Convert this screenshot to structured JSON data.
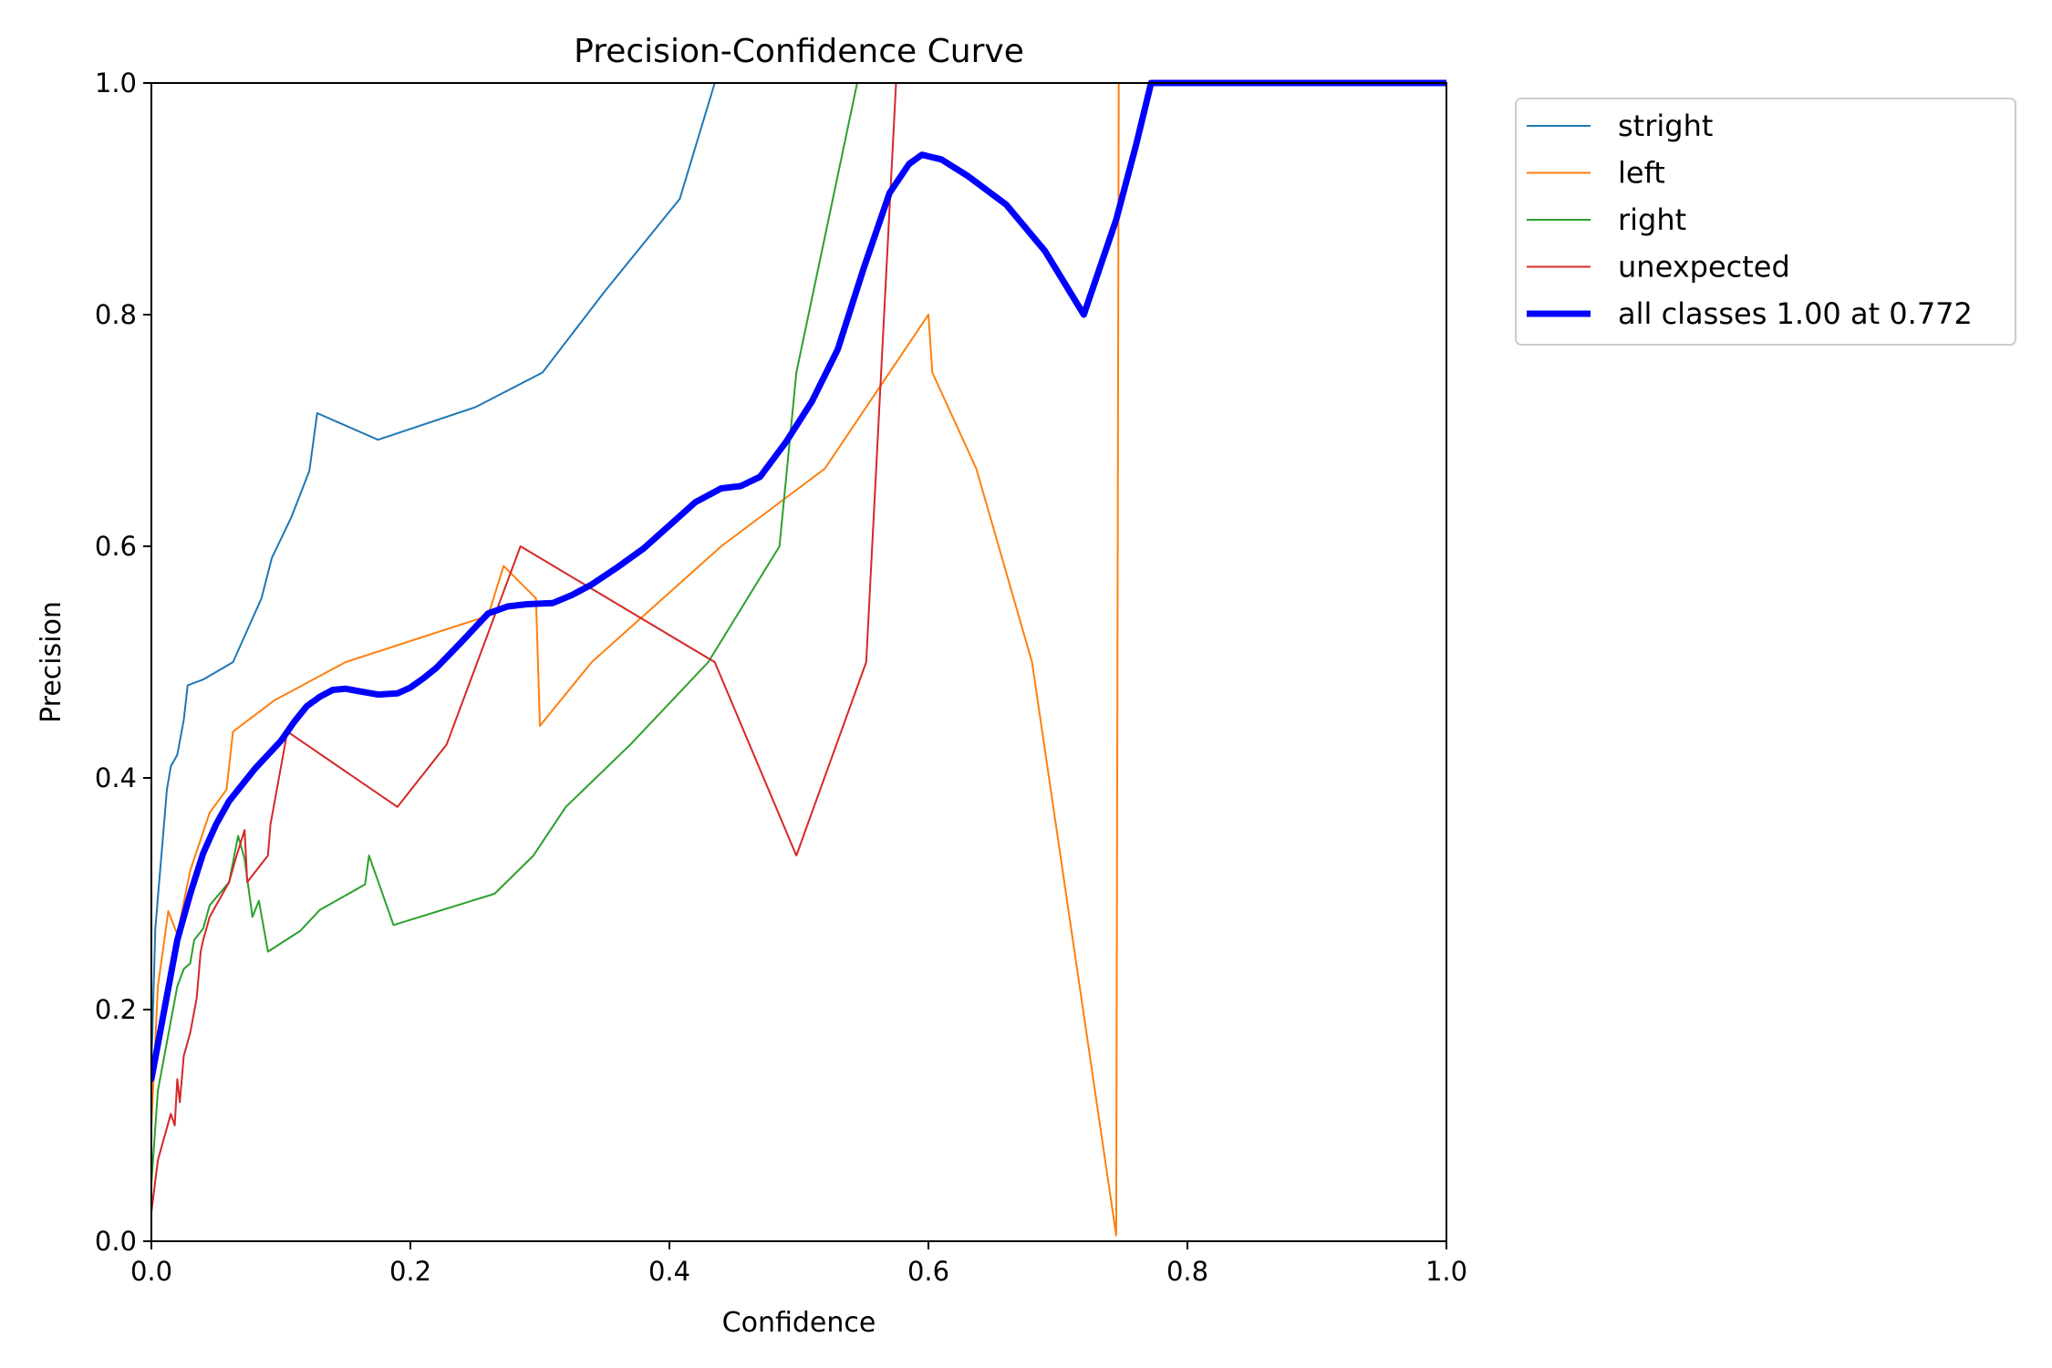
{
  "chart_data": {
    "type": "line",
    "title": "Precision-Confidence Curve",
    "xlabel": "Confidence",
    "ylabel": "Precision",
    "xlim": [
      0,
      1
    ],
    "ylim": [
      0,
      1
    ],
    "xticks": [
      "0.0",
      "0.2",
      "0.4",
      "0.6",
      "0.8",
      "1.0"
    ],
    "yticks": [
      "0.0",
      "0.2",
      "0.4",
      "0.6",
      "0.8",
      "1.0"
    ],
    "grid": false,
    "legend_position": "outside-top-right",
    "series": [
      {
        "name": "stright",
        "color": "#1f77b4",
        "width": "thin",
        "x": [
          0,
          0.003,
          0.006,
          0.009,
          0.012,
          0.015,
          0.02,
          0.025,
          0.028,
          0.04,
          0.063,
          0.075,
          0.085,
          0.093,
          0.108,
          0.122,
          0.128,
          0.175,
          0.25,
          0.302,
          0.35,
          0.408,
          0.435,
          1.0
        ],
        "y": [
          0.15,
          0.27,
          0.31,
          0.35,
          0.39,
          0.41,
          0.42,
          0.45,
          0.48,
          0.485,
          0.5,
          0.53,
          0.555,
          0.59,
          0.625,
          0.665,
          0.715,
          0.692,
          0.72,
          0.75,
          0.82,
          0.9,
          1.0,
          1.0
        ]
      },
      {
        "name": "left",
        "color": "#ff7f0e",
        "width": "thin",
        "x": [
          0,
          0.005,
          0.01,
          0.013,
          0.02,
          0.03,
          0.045,
          0.058,
          0.063,
          0.095,
          0.15,
          0.26,
          0.272,
          0.297,
          0.3,
          0.34,
          0.44,
          0.52,
          0.6,
          0.603,
          0.637,
          0.68,
          0.745,
          0.747,
          1.0
        ],
        "y": [
          0.1,
          0.22,
          0.26,
          0.285,
          0.265,
          0.32,
          0.37,
          0.39,
          0.44,
          0.467,
          0.5,
          0.54,
          0.583,
          0.555,
          0.445,
          0.5,
          0.6,
          0.667,
          0.8,
          0.75,
          0.667,
          0.5,
          0.005,
          1.0,
          1.0
        ]
      },
      {
        "name": "right",
        "color": "#2ca02c",
        "width": "thin",
        "x": [
          0,
          0.005,
          0.01,
          0.015,
          0.02,
          0.025,
          0.03,
          0.033,
          0.04,
          0.045,
          0.06,
          0.067,
          0.072,
          0.078,
          0.083,
          0.09,
          0.115,
          0.13,
          0.165,
          0.168,
          0.187,
          0.265,
          0.295,
          0.32,
          0.37,
          0.43,
          0.485,
          0.498,
          0.545,
          1.0
        ],
        "y": [
          0.05,
          0.13,
          0.16,
          0.19,
          0.22,
          0.235,
          0.24,
          0.26,
          0.27,
          0.29,
          0.31,
          0.35,
          0.33,
          0.28,
          0.294,
          0.25,
          0.268,
          0.286,
          0.308,
          0.333,
          0.273,
          0.3,
          0.333,
          0.375,
          0.429,
          0.5,
          0.6,
          0.75,
          1.0,
          1.0
        ]
      },
      {
        "name": "unexpected",
        "color": "#d62728",
        "width": "thin",
        "x": [
          0,
          0.005,
          0.01,
          0.015,
          0.018,
          0.02,
          0.022,
          0.025,
          0.03,
          0.035,
          0.038,
          0.04,
          0.045,
          0.06,
          0.065,
          0.072,
          0.074,
          0.09,
          0.092,
          0.105,
          0.19,
          0.228,
          0.285,
          0.435,
          0.498,
          0.552,
          0.575,
          0.578,
          1.0
        ],
        "y": [
          0.025,
          0.07,
          0.09,
          0.11,
          0.1,
          0.14,
          0.12,
          0.16,
          0.18,
          0.21,
          0.25,
          0.26,
          0.28,
          0.31,
          0.33,
          0.355,
          0.31,
          0.333,
          0.36,
          0.44,
          0.375,
          0.429,
          0.6,
          0.5,
          0.333,
          0.5,
          1.0,
          1.0,
          1.0
        ]
      },
      {
        "name": "all classes 1.00 at 0.772",
        "color": "#0000ff",
        "width": "thick",
        "x": [
          0,
          0.01,
          0.02,
          0.03,
          0.04,
          0.05,
          0.06,
          0.08,
          0.09,
          0.1,
          0.11,
          0.12,
          0.13,
          0.14,
          0.15,
          0.16,
          0.175,
          0.19,
          0.2,
          0.21,
          0.22,
          0.24,
          0.26,
          0.275,
          0.29,
          0.31,
          0.325,
          0.34,
          0.36,
          0.38,
          0.4,
          0.42,
          0.44,
          0.455,
          0.47,
          0.49,
          0.51,
          0.53,
          0.55,
          0.57,
          0.585,
          0.595,
          0.61,
          0.63,
          0.66,
          0.69,
          0.72,
          0.745,
          0.76,
          0.772,
          1.0
        ],
        "y": [
          0.14,
          0.2,
          0.26,
          0.3,
          0.335,
          0.36,
          0.38,
          0.408,
          0.42,
          0.432,
          0.448,
          0.462,
          0.47,
          0.476,
          0.477,
          0.475,
          0.472,
          0.473,
          0.478,
          0.486,
          0.495,
          0.518,
          0.542,
          0.548,
          0.55,
          0.551,
          0.558,
          0.567,
          0.582,
          0.598,
          0.618,
          0.638,
          0.65,
          0.652,
          0.66,
          0.69,
          0.725,
          0.77,
          0.84,
          0.905,
          0.93,
          0.938,
          0.934,
          0.92,
          0.895,
          0.855,
          0.8,
          0.882,
          0.945,
          1.0,
          1.0
        ]
      }
    ]
  }
}
